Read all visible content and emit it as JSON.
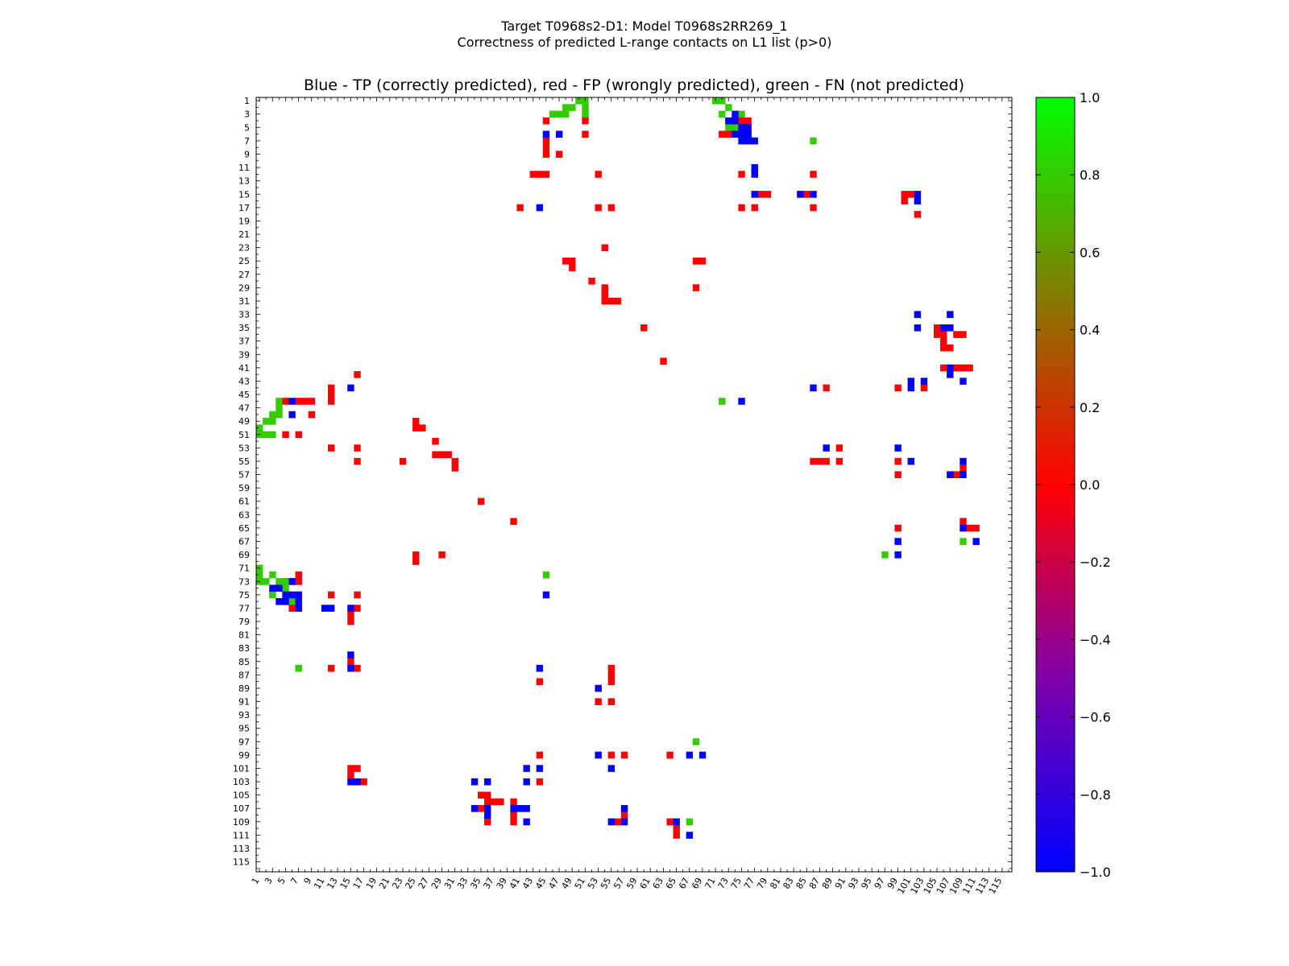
{
  "header": {
    "title_line1": "Target T0968s2-D1: Model T0968s2RR269_1",
    "title_line2": "Correctness of predicted L-range contacts on L1 list (p>0)"
  },
  "chart_data": {
    "type": "heatmap",
    "title": "Blue - TP (correctly predicted), red - FP (wrongly predicted), green - FN (not predicted)",
    "xlabel": "",
    "ylabel": "",
    "xlim": [
      1,
      116
    ],
    "ylim": [
      1,
      116
    ],
    "x_ticks": [
      1,
      3,
      5,
      7,
      9,
      11,
      13,
      15,
      17,
      19,
      21,
      23,
      25,
      27,
      29,
      31,
      33,
      35,
      37,
      39,
      41,
      43,
      45,
      47,
      49,
      51,
      53,
      55,
      57,
      59,
      61,
      63,
      65,
      67,
      69,
      71,
      73,
      75,
      77,
      79,
      81,
      83,
      85,
      87,
      89,
      91,
      93,
      95,
      97,
      99,
      101,
      103,
      105,
      107,
      109,
      111,
      113,
      115
    ],
    "y_ticks": [
      1,
      3,
      5,
      7,
      9,
      11,
      13,
      15,
      17,
      19,
      21,
      23,
      25,
      27,
      29,
      31,
      33,
      35,
      37,
      39,
      41,
      43,
      45,
      47,
      49,
      51,
      53,
      55,
      57,
      59,
      61,
      63,
      65,
      67,
      69,
      71,
      73,
      75,
      77,
      79,
      81,
      83,
      85,
      87,
      89,
      91,
      93,
      95,
      97,
      99,
      101,
      103,
      105,
      107,
      109,
      111,
      113,
      115
    ],
    "colorbar": {
      "min": -1.0,
      "max": 1.0,
      "ticks": [
        "1.0",
        "0.8",
        "0.6",
        "0.4",
        "0.2",
        "0.0",
        "−0.2",
        "−0.4",
        "−0.6",
        "−0.8",
        "−1.0"
      ],
      "tick_values": [
        1.0,
        0.8,
        0.6,
        0.4,
        0.2,
        0.0,
        -0.2,
        -0.4,
        -0.6,
        -0.8,
        -1.0
      ]
    },
    "categories": {
      "TP": {
        "value": -1.0,
        "color": "#0000ff"
      },
      "FP": {
        "value": 0.0,
        "color": "#ff0000"
      },
      "FN": {
        "value": 0.8,
        "color": "#33cc00"
      }
    },
    "cells": {
      "FN": [
        [
          50,
          1
        ],
        [
          51,
          1
        ],
        [
          71,
          1
        ],
        [
          72,
          1
        ],
        [
          48,
          2
        ],
        [
          49,
          2
        ],
        [
          51,
          2
        ],
        [
          73,
          2
        ],
        [
          46,
          3
        ],
        [
          47,
          3
        ],
        [
          48,
          3
        ],
        [
          51,
          3
        ],
        [
          72,
          3
        ],
        [
          75,
          3
        ],
        [
          73,
          4
        ],
        [
          73,
          5
        ],
        [
          74,
          5
        ],
        [
          76,
          6
        ],
        [
          86,
          7
        ],
        [
          72,
          46
        ],
        [
          4,
          46
        ],
        [
          4,
          47
        ],
        [
          3,
          48
        ],
        [
          4,
          48
        ],
        [
          2,
          49
        ],
        [
          3,
          49
        ],
        [
          1,
          50
        ],
        [
          1,
          51
        ],
        [
          2,
          51
        ],
        [
          3,
          51
        ],
        [
          1,
          71
        ],
        [
          1,
          72
        ],
        [
          3,
          72
        ],
        [
          1,
          73
        ],
        [
          2,
          73
        ],
        [
          4,
          73
        ],
        [
          5,
          73
        ],
        [
          4,
          74
        ],
        [
          5,
          74
        ],
        [
          3,
          75
        ],
        [
          6,
          76
        ],
        [
          45,
          72
        ],
        [
          7,
          86
        ],
        [
          68,
          97
        ],
        [
          97,
          69
        ],
        [
          109,
          67
        ],
        [
          67,
          109
        ]
      ],
      "TP": [
        [
          74,
          3
        ],
        [
          73,
          4
        ],
        [
          74,
          4
        ],
        [
          75,
          5
        ],
        [
          76,
          5
        ],
        [
          74,
          6
        ],
        [
          75,
          6
        ],
        [
          76,
          6
        ],
        [
          75,
          7
        ],
        [
          76,
          7
        ],
        [
          77,
          7
        ],
        [
          45,
          6
        ],
        [
          47,
          6
        ],
        [
          77,
          11
        ],
        [
          77,
          12
        ],
        [
          77,
          15
        ],
        [
          84,
          15
        ],
        [
          86,
          15
        ],
        [
          102,
          15
        ],
        [
          102,
          16
        ],
        [
          44,
          17
        ],
        [
          102,
          33
        ],
        [
          107,
          33
        ],
        [
          102,
          35
        ],
        [
          106,
          35
        ],
        [
          107,
          35
        ],
        [
          107,
          41
        ],
        [
          107,
          42
        ],
        [
          101,
          43
        ],
        [
          103,
          43
        ],
        [
          109,
          43
        ],
        [
          15,
          44
        ],
        [
          86,
          44
        ],
        [
          101,
          44
        ],
        [
          6,
          46
        ],
        [
          75,
          46
        ],
        [
          6,
          48
        ],
        [
          88,
          53
        ],
        [
          99,
          53
        ],
        [
          101,
          55
        ],
        [
          109,
          55
        ],
        [
          107,
          57
        ],
        [
          109,
          57
        ],
        [
          109,
          65
        ],
        [
          99,
          67
        ],
        [
          111,
          67
        ],
        [
          99,
          69
        ],
        [
          3,
          74
        ],
        [
          4,
          74
        ],
        [
          6,
          73
        ],
        [
          5,
          75
        ],
        [
          6,
          75
        ],
        [
          7,
          75
        ],
        [
          4,
          76
        ],
        [
          5,
          76
        ],
        [
          7,
          76
        ],
        [
          7,
          77
        ],
        [
          11,
          77
        ],
        [
          12,
          77
        ],
        [
          15,
          77
        ],
        [
          45,
          75
        ],
        [
          15,
          84
        ],
        [
          15,
          86
        ],
        [
          44,
          86
        ],
        [
          53,
          89
        ],
        [
          53,
          99
        ],
        [
          67,
          99
        ],
        [
          69,
          99
        ],
        [
          55,
          101
        ],
        [
          42,
          101
        ],
        [
          44,
          101
        ],
        [
          15,
          103
        ],
        [
          16,
          103
        ],
        [
          34,
          103
        ],
        [
          36,
          103
        ],
        [
          42,
          103
        ],
        [
          36,
          107
        ],
        [
          34,
          107
        ],
        [
          40,
          107
        ],
        [
          41,
          107
        ],
        [
          42,
          107
        ],
        [
          57,
          107
        ],
        [
          36,
          108
        ],
        [
          57,
          109
        ],
        [
          55,
          109
        ],
        [
          65,
          109
        ],
        [
          42,
          109
        ],
        [
          67,
          111
        ]
      ],
      "FP": [
        [
          45,
          4
        ],
        [
          51,
          4
        ],
        [
          76,
          4
        ],
        [
          75,
          4
        ],
        [
          51,
          6
        ],
        [
          72,
          6
        ],
        [
          73,
          6
        ],
        [
          45,
          7
        ],
        [
          45,
          8
        ],
        [
          45,
          9
        ],
        [
          47,
          9
        ],
        [
          43,
          12
        ],
        [
          44,
          12
        ],
        [
          45,
          12
        ],
        [
          53,
          12
        ],
        [
          75,
          12
        ],
        [
          86,
          12
        ],
        [
          41,
          17
        ],
        [
          53,
          17
        ],
        [
          55,
          17
        ],
        [
          75,
          17
        ],
        [
          77,
          17
        ],
        [
          78,
          15
        ],
        [
          79,
          15
        ],
        [
          85,
          15
        ],
        [
          86,
          17
        ],
        [
          100,
          15
        ],
        [
          100,
          16
        ],
        [
          101,
          15
        ],
        [
          102,
          18
        ],
        [
          54,
          23
        ],
        [
          48,
          25
        ],
        [
          49,
          25
        ],
        [
          49,
          26
        ],
        [
          68,
          25
        ],
        [
          69,
          25
        ],
        [
          52,
          28
        ],
        [
          54,
          29
        ],
        [
          54,
          30
        ],
        [
          54,
          31
        ],
        [
          55,
          31
        ],
        [
          56,
          31
        ],
        [
          68,
          29
        ],
        [
          60,
          35
        ],
        [
          63,
          40
        ],
        [
          105,
          35
        ],
        [
          105,
          36
        ],
        [
          106,
          36
        ],
        [
          108,
          36
        ],
        [
          109,
          36
        ],
        [
          106,
          37
        ],
        [
          107,
          38
        ],
        [
          106,
          38
        ],
        [
          106,
          41
        ],
        [
          108,
          41
        ],
        [
          109,
          41
        ],
        [
          110,
          41
        ],
        [
          103,
          44
        ],
        [
          88,
          44
        ],
        [
          99,
          44
        ],
        [
          16,
          42
        ],
        [
          12,
          44
        ],
        [
          12,
          45
        ],
        [
          12,
          46
        ],
        [
          5,
          46
        ],
        [
          7,
          46
        ],
        [
          8,
          46
        ],
        [
          9,
          46
        ],
        [
          9,
          48
        ],
        [
          25,
          49
        ],
        [
          25,
          50
        ],
        [
          26,
          50
        ],
        [
          5,
          51
        ],
        [
          7,
          51
        ],
        [
          28,
          52
        ],
        [
          12,
          53
        ],
        [
          16,
          53
        ],
        [
          23,
          55
        ],
        [
          28,
          54
        ],
        [
          29,
          54
        ],
        [
          30,
          54
        ],
        [
          31,
          55
        ],
        [
          31,
          56
        ],
        [
          16,
          55
        ],
        [
          90,
          53
        ],
        [
          86,
          55
        ],
        [
          87,
          55
        ],
        [
          88,
          55
        ],
        [
          90,
          55
        ],
        [
          99,
          55
        ],
        [
          99,
          57
        ],
        [
          108,
          57
        ],
        [
          109,
          56
        ],
        [
          35,
          61
        ],
        [
          40,
          64
        ],
        [
          99,
          65
        ],
        [
          109,
          64
        ],
        [
          110,
          65
        ],
        [
          111,
          65
        ],
        [
          25,
          69
        ],
        [
          25,
          70
        ],
        [
          29,
          69
        ],
        [
          7,
          72
        ],
        [
          7,
          73
        ],
        [
          12,
          75
        ],
        [
          16,
          75
        ],
        [
          6,
          77
        ],
        [
          16,
          77
        ],
        [
          15,
          78
        ],
        [
          15,
          79
        ],
        [
          15,
          85
        ],
        [
          16,
          86
        ],
        [
          12,
          86
        ],
        [
          55,
          86
        ],
        [
          55,
          87
        ],
        [
          55,
          88
        ],
        [
          44,
          88
        ],
        [
          53,
          91
        ],
        [
          55,
          91
        ],
        [
          44,
          99
        ],
        [
          55,
          99
        ],
        [
          57,
          99
        ],
        [
          64,
          99
        ],
        [
          15,
          101
        ],
        [
          16,
          101
        ],
        [
          15,
          102
        ],
        [
          17,
          103
        ],
        [
          44,
          103
        ],
        [
          35,
          105
        ],
        [
          36,
          105
        ],
        [
          36,
          106
        ],
        [
          37,
          106
        ],
        [
          38,
          106
        ],
        [
          35,
          107
        ],
        [
          40,
          106
        ],
        [
          40,
          108
        ],
        [
          40,
          109
        ],
        [
          36,
          109
        ],
        [
          57,
          108
        ],
        [
          56,
          109
        ],
        [
          64,
          109
        ],
        [
          65,
          110
        ],
        [
          65,
          111
        ]
      ]
    }
  }
}
